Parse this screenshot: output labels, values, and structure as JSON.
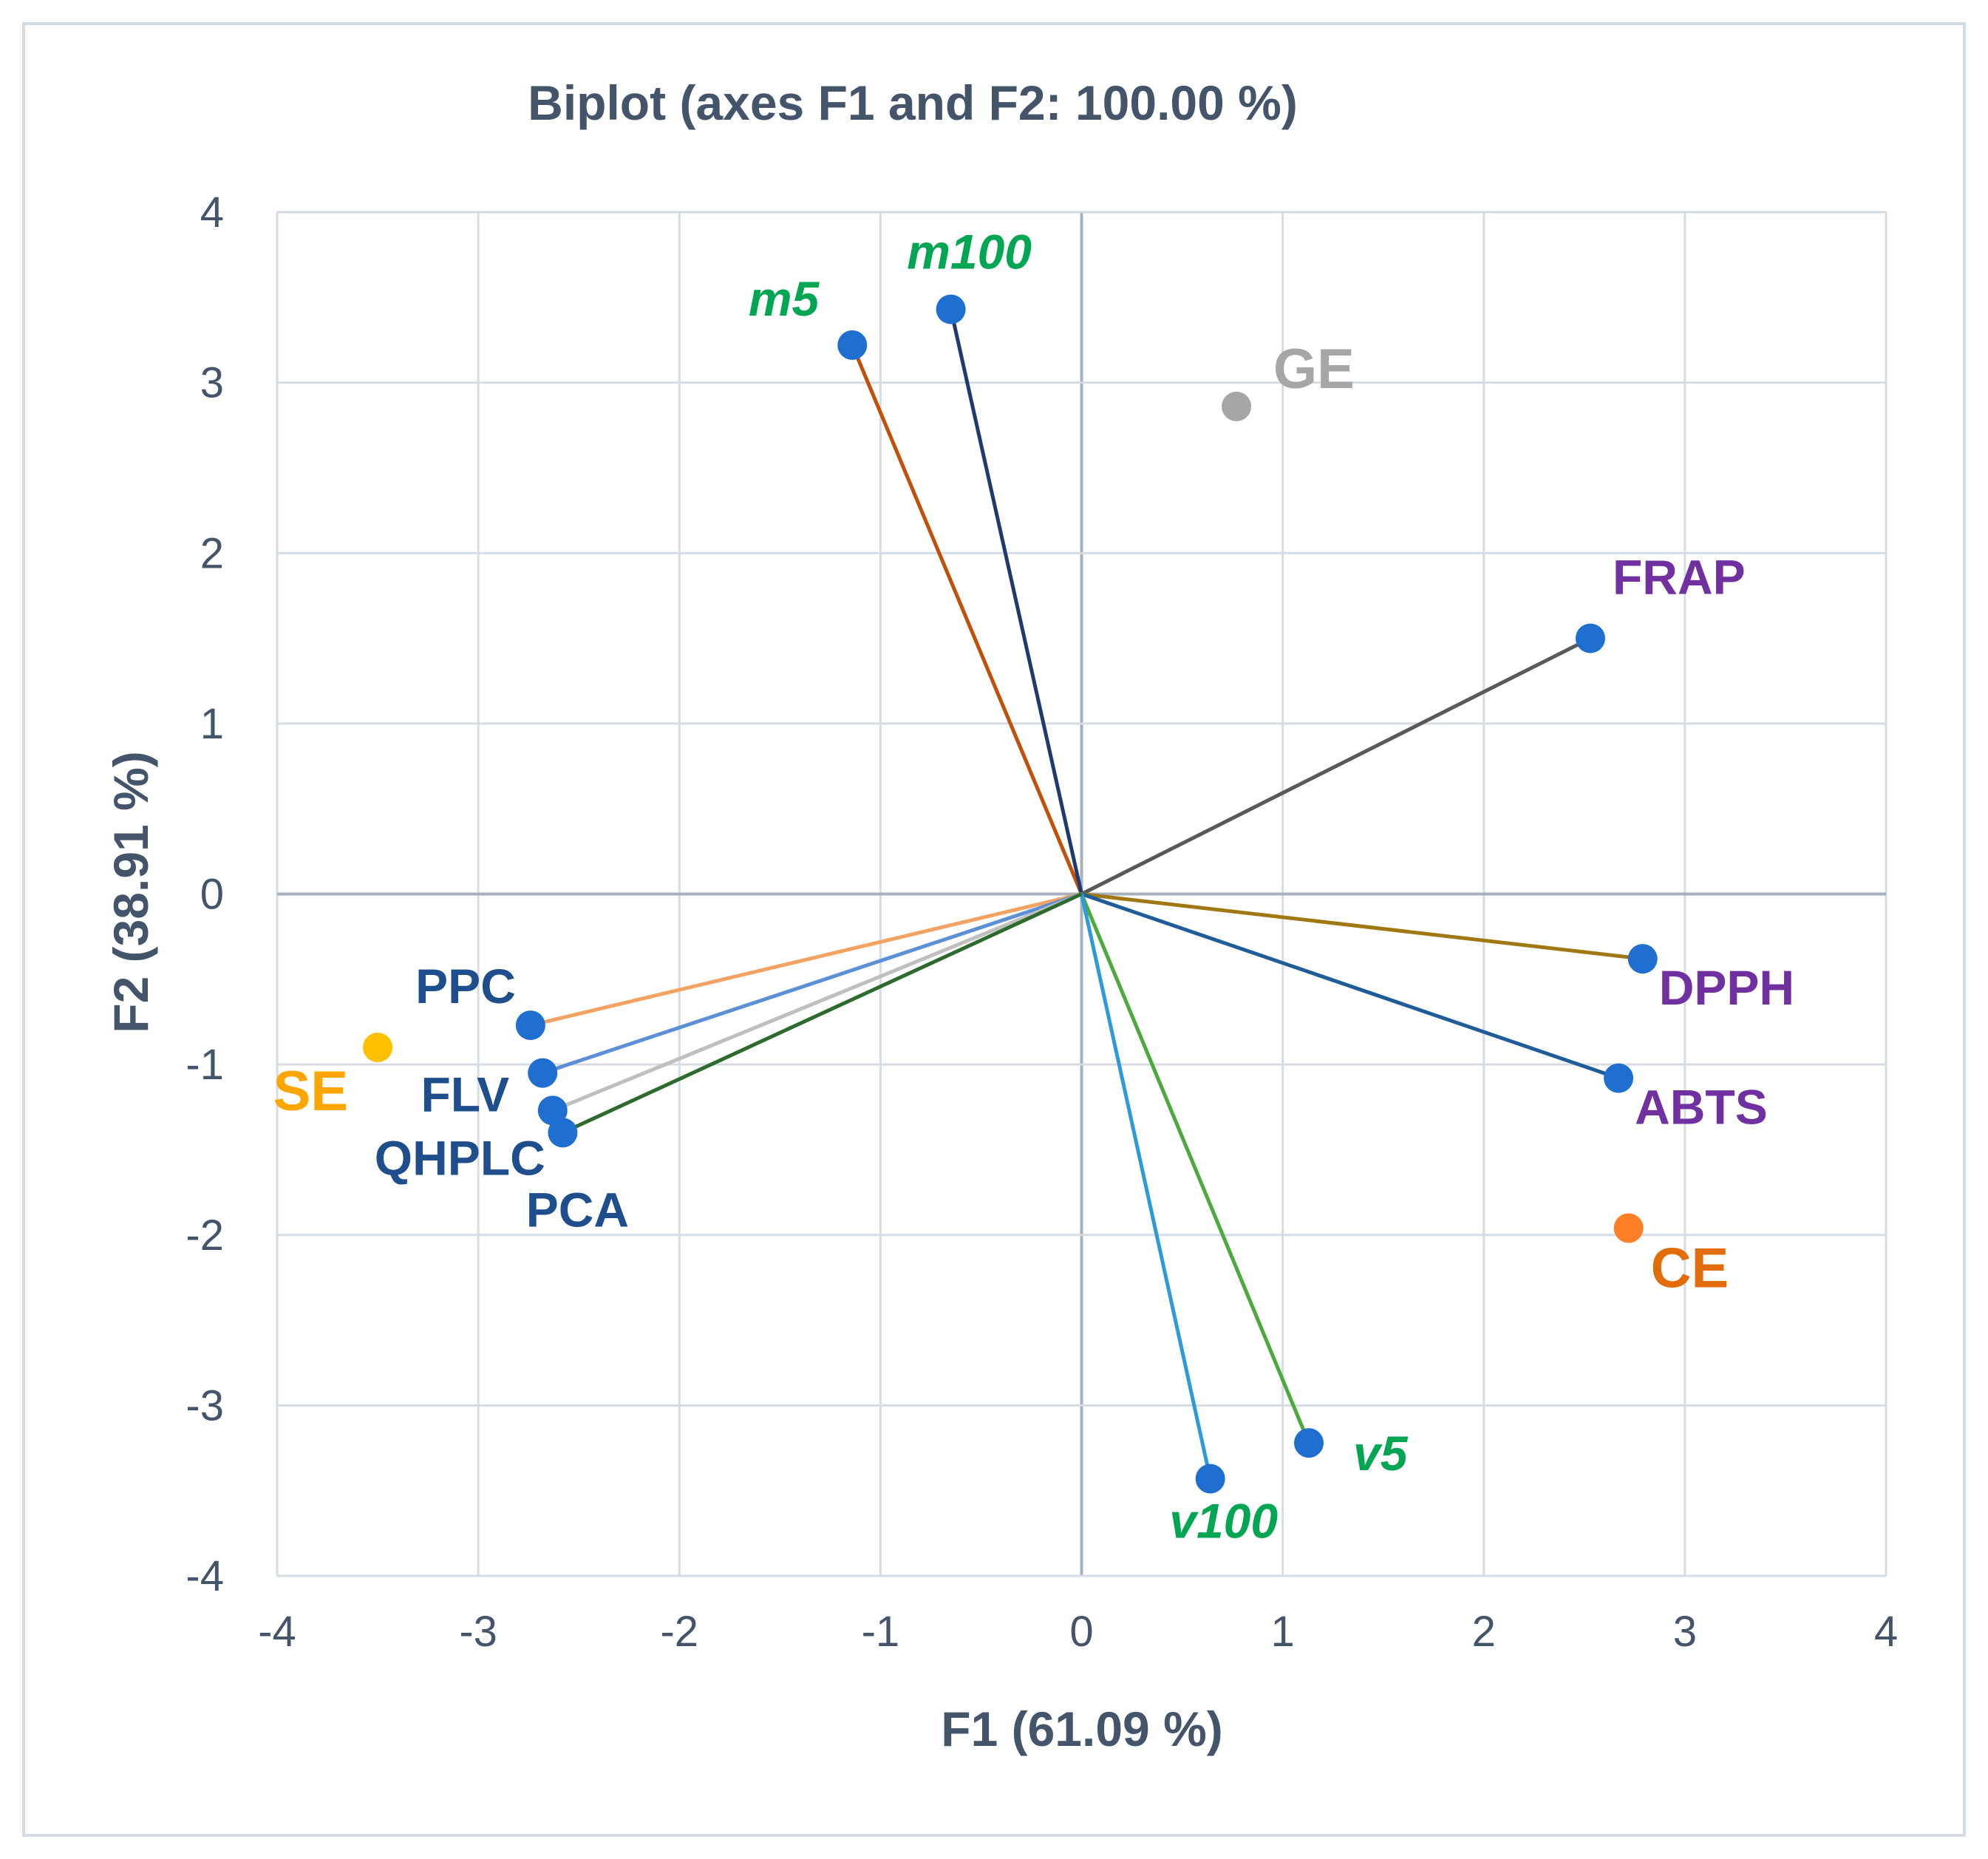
{
  "chart_data": {
    "type": "scatter",
    "title": "Biplot (axes F1 and F2: 100.00 %)",
    "xlabel": "F1 (61.09 %)",
    "ylabel": "F2 (38.91 %)",
    "xlim": [
      -4,
      4
    ],
    "ylim": [
      -4,
      4
    ],
    "xticks": [
      "-4",
      "-3",
      "-2",
      "-1",
      "0",
      "1",
      "2",
      "3",
      "4"
    ],
    "yticks": [
      "-4",
      "-3",
      "-2",
      "-1",
      "0",
      "1",
      "2",
      "3",
      "4"
    ],
    "grid": true,
    "vectors": [
      {
        "name": "m5",
        "x": -1.14,
        "y": 3.22,
        "line_color": "#c0500a",
        "label_color": "#00a651",
        "italic": true,
        "label_pos": "upper-left"
      },
      {
        "name": "m100",
        "x": -0.65,
        "y": 3.43,
        "line_color": "#1f3a6e",
        "label_color": "#00a651",
        "italic": true,
        "label_pos": "top"
      },
      {
        "name": "FRAP",
        "x": 2.53,
        "y": 1.5,
        "line_color": "#595959",
        "label_color": "#7030a0",
        "italic": false,
        "label_pos": "upper-right"
      },
      {
        "name": "DPPH",
        "x": 2.79,
        "y": -0.38,
        "line_color": "#a07812",
        "label_color": "#7030a0",
        "italic": false,
        "label_pos": "lower-right"
      },
      {
        "name": "ABTS",
        "x": 2.67,
        "y": -1.08,
        "line_color": "#1f5c99",
        "label_color": "#7030a0",
        "italic": false,
        "label_pos": "lower-right"
      },
      {
        "name": "v5",
        "x": 1.13,
        "y": -3.22,
        "line_color": "#4aab3c",
        "label_color": "#00a651",
        "italic": true,
        "label_pos": "lower-right"
      },
      {
        "name": "v100",
        "x": 0.64,
        "y": -3.43,
        "line_color": "#2e9ad8",
        "label_color": "#00a651",
        "italic": true,
        "label_pos": "bottom"
      },
      {
        "name": "PPC",
        "x": -2.74,
        "y": -0.77,
        "line_color": "#f4a261",
        "label_color": "#1f4e8c",
        "italic": false,
        "label_pos": "upper-left"
      },
      {
        "name": "FLV",
        "x": -2.68,
        "y": -1.05,
        "line_color": "#5b8fd6",
        "label_color": "#1f4e8c",
        "italic": false,
        "label_pos": "left"
      },
      {
        "name": "QHPLC",
        "x": -2.63,
        "y": -1.27,
        "line_color": "#bfbfbf",
        "label_color": "#1f4e8c",
        "italic": false,
        "label_pos": "lower-left"
      },
      {
        "name": "PCA",
        "x": -2.58,
        "y": -1.4,
        "line_color": "#2d6a2d",
        "label_color": "#1f4e8c",
        "italic": false,
        "label_pos": "below"
      }
    ],
    "observations": [
      {
        "name": "GE",
        "x": 0.77,
        "y": 2.86,
        "color": "#a6a6a6",
        "label_color": "#a6a6a6",
        "label_pos": "upper-right"
      },
      {
        "name": "SE",
        "x": -3.5,
        "y": -0.9,
        "color": "#ffc000",
        "label_color": "#ffa500",
        "label_pos": "lower-left"
      },
      {
        "name": "CE",
        "x": 2.72,
        "y": -1.96,
        "color": "#ff7f27",
        "label_color": "#e36c0a",
        "label_pos": "below-right"
      }
    ],
    "colors": {
      "axis_text": "#44546a",
      "grid": "#d6dce4",
      "zero_line": "#a6b0bf",
      "variable_point": "#1f6fd1"
    }
  }
}
